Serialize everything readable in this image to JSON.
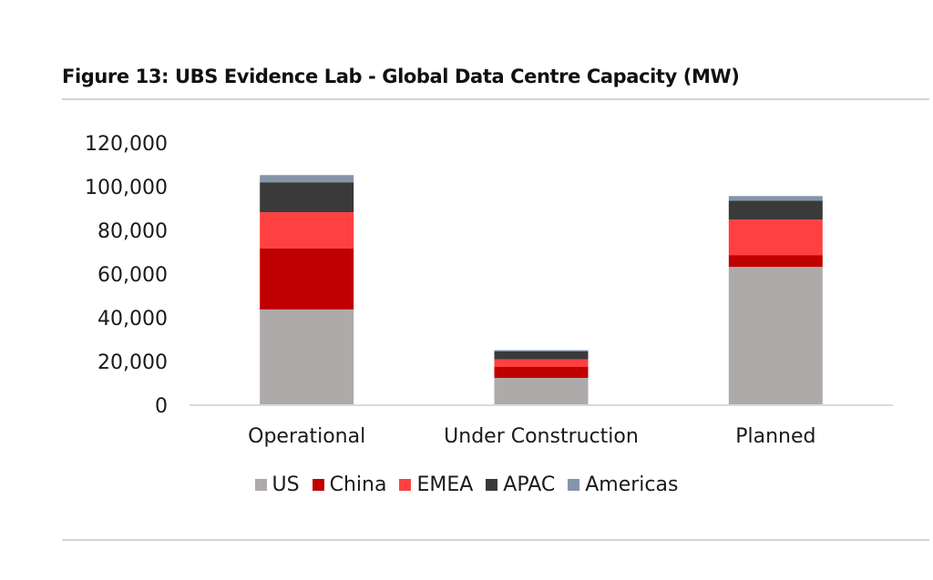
{
  "figure": {
    "title": "Figure 13: UBS Evidence Lab - Global Data Centre Capacity (MW)"
  },
  "chart_data": {
    "type": "bar",
    "stacked": true,
    "title": "Figure 13: UBS Evidence Lab - Global Data Centre Capacity (MW)",
    "xlabel": "",
    "ylabel": "",
    "categories": [
      "Operational",
      "Under Construction",
      "Planned"
    ],
    "series": [
      {
        "name": "US",
        "color": "#aeaaaa",
        "values": [
          43800,
          12500,
          63300
        ]
      },
      {
        "name": "China",
        "color": "#c00000",
        "values": [
          28000,
          5000,
          5400
        ]
      },
      {
        "name": "EMEA",
        "color": "#ff4040",
        "values": [
          16500,
          3500,
          16200
        ]
      },
      {
        "name": "APAC",
        "color": "#3a3a3a",
        "values": [
          13700,
          3700,
          8700
        ]
      },
      {
        "name": "Americas",
        "color": "#8495ab",
        "values": [
          3300,
          500,
          2100
        ]
      }
    ],
    "ylim": [
      0,
      120000
    ],
    "yticks": [
      0,
      20000,
      40000,
      60000,
      80000,
      100000,
      120000
    ],
    "ytick_labels": [
      "0",
      "20,000",
      "40,000",
      "60,000",
      "80,000",
      "100,000",
      "120,000"
    ],
    "grid": false,
    "legend_position": "bottom"
  }
}
